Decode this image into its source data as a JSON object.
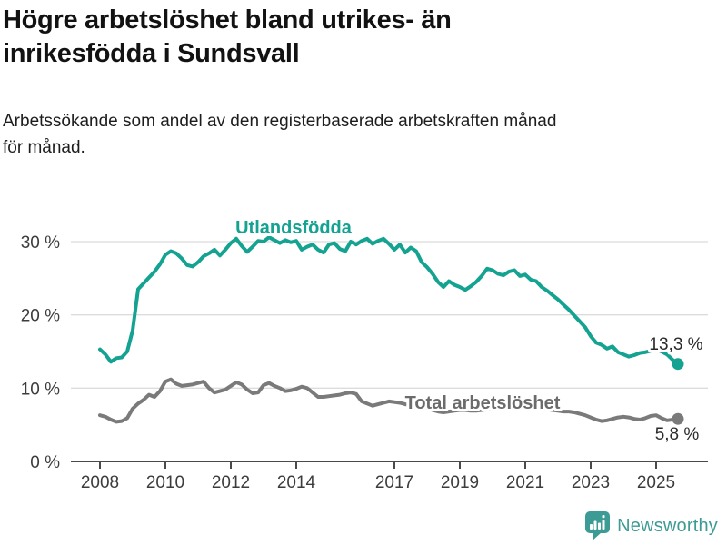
{
  "header": {
    "title_line1": "Högre arbetslöshet bland utrikes- än",
    "title_line2": "inrikesfödda i Sundsvall",
    "subtitle": "Arbetssökande som andel av den registerbaserade arbetskraften månad för månad."
  },
  "footer": {
    "brand": "Newsworthy",
    "brand_color": "#3c9b94",
    "logo_icon": "newsworthy-speech-bubble-bar-chart-icon"
  },
  "chart_data": {
    "type": "line",
    "title": "Högre arbetslöshet bland utrikes- än inrikesfödda i Sundsvall",
    "subtitle": "Arbetssökande som andel av den registerbaserade arbetskraften månad för månad.",
    "grid": "horizontal",
    "legend_position": "inline-labels",
    "xlim": [
      2007.1,
      2026.6
    ],
    "ylim": [
      0,
      32
    ],
    "x_axis": {
      "ticks": [
        {
          "value": 2008,
          "label": "2008"
        },
        {
          "value": 2010,
          "label": "2010"
        },
        {
          "value": 2012,
          "label": "2012"
        },
        {
          "value": 2014,
          "label": "2014"
        },
        {
          "value": 2017,
          "label": "2017"
        },
        {
          "value": 2019,
          "label": "2019"
        },
        {
          "value": 2021,
          "label": "2021"
        },
        {
          "value": 2023,
          "label": "2023"
        },
        {
          "value": 2025,
          "label": "2025"
        }
      ]
    },
    "y_axis": {
      "ticks": [
        {
          "value": 0,
          "label": "0 %"
        },
        {
          "value": 10,
          "label": "10 %"
        },
        {
          "value": 20,
          "label": "20 %"
        },
        {
          "value": 30,
          "label": "30 %"
        }
      ]
    },
    "series": [
      {
        "name": "Utlandsfödda",
        "color": "#14a291",
        "start_year": 2008.0,
        "step_months": 2,
        "end_value_label": "13,3 %",
        "end_value": 13.3,
        "values": [
          15.3,
          14.6,
          13.6,
          14.1,
          14.2,
          15.0,
          17.9,
          23.5,
          24.3,
          25.1,
          25.9,
          26.9,
          28.2,
          28.7,
          28.4,
          27.7,
          26.8,
          26.6,
          27.2,
          28.0,
          28.4,
          28.9,
          28.1,
          28.9,
          29.8,
          30.4,
          29.4,
          28.6,
          29.3,
          30.1,
          30.0,
          30.6,
          30.2,
          29.8,
          30.2,
          29.9,
          30.1,
          28.9,
          29.3,
          29.6,
          28.9,
          28.5,
          29.6,
          29.8,
          29.0,
          28.7,
          30.0,
          29.6,
          30.1,
          30.4,
          29.7,
          30.1,
          30.4,
          29.7,
          28.9,
          29.6,
          28.5,
          29.2,
          28.7,
          27.2,
          26.5,
          25.6,
          24.5,
          23.8,
          24.6,
          24.1,
          23.8,
          23.4,
          23.9,
          24.5,
          25.3,
          26.3,
          26.1,
          25.6,
          25.4,
          25.9,
          26.1,
          25.3,
          25.5,
          24.8,
          24.6,
          23.8,
          23.3,
          22.7,
          22.1,
          21.4,
          20.7,
          19.9,
          19.1,
          18.3,
          17.1,
          16.2,
          15.9,
          15.4,
          15.7,
          14.9,
          14.6,
          14.3,
          14.5,
          14.8,
          14.9,
          15.1,
          15.3,
          15.0,
          14.6,
          13.9,
          13.3
        ]
      },
      {
        "name": "Total arbetslöshet",
        "color": "#7a7a7a",
        "start_year": 2008.0,
        "step_months": 2,
        "end_value_label": "5,8 %",
        "end_value": 5.8,
        "values": [
          6.3,
          6.1,
          5.7,
          5.4,
          5.5,
          5.9,
          7.2,
          7.9,
          8.4,
          9.1,
          8.8,
          9.6,
          10.9,
          11.2,
          10.6,
          10.3,
          10.4,
          10.5,
          10.7,
          10.9,
          10.0,
          9.4,
          9.6,
          9.8,
          10.3,
          10.8,
          10.5,
          9.8,
          9.3,
          9.4,
          10.4,
          10.7,
          10.3,
          10.0,
          9.6,
          9.7,
          9.9,
          10.2,
          10.0,
          9.4,
          8.8,
          8.8,
          8.9,
          9.0,
          9.1,
          9.3,
          9.4,
          9.2,
          8.2,
          7.9,
          7.6,
          7.8,
          8.0,
          8.2,
          8.1,
          8.0,
          7.8,
          7.7,
          7.6,
          7.5,
          7.3,
          7.0,
          6.8,
          6.7,
          6.8,
          6.9,
          7.0,
          7.0,
          6.9,
          6.9,
          7.0,
          7.1,
          7.4,
          7.8,
          8.1,
          8.2,
          8.1,
          8.0,
          7.9,
          7.7,
          7.5,
          7.3,
          7.1,
          7.0,
          6.9,
          6.8,
          6.8,
          6.7,
          6.5,
          6.3,
          6.0,
          5.7,
          5.5,
          5.6,
          5.8,
          6.0,
          6.1,
          6.0,
          5.8,
          5.7,
          5.9,
          6.2,
          6.3,
          5.9,
          5.6,
          5.7,
          5.8
        ]
      }
    ]
  }
}
